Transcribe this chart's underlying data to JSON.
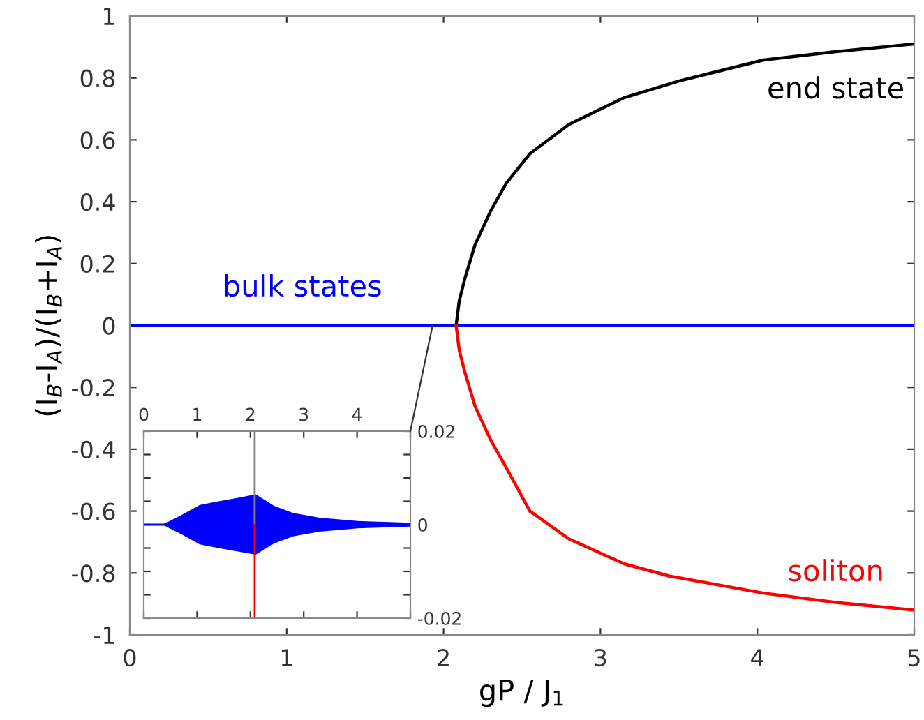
{
  "chart_data": [
    {
      "type": "line",
      "xlabel": "gP / J$_{1}$",
      "ylabel": "(I$_{B}$-I$_{A}$)/(I$_{B}$+I$_{A}$)",
      "xlim": [
        0,
        5
      ],
      "ylim": [
        -1,
        1
      ],
      "xticks": [
        0,
        1,
        2,
        3,
        4,
        5
      ],
      "yticks": [
        -1,
        -0.8,
        -0.6,
        -0.4,
        -0.2,
        0,
        0.2,
        0.4,
        0.6,
        0.8,
        1
      ],
      "grid": false,
      "legend": false,
      "marker": "none",
      "line_style": "solid",
      "series": [
        {
          "name": "bulk states",
          "color": "#0000ff",
          "x": [
            0,
            1,
            2,
            2.08,
            3,
            4,
            5
          ],
          "values": [
            0,
            0,
            0,
            0,
            0,
            0,
            0
          ]
        },
        {
          "name": "end state",
          "color": "#000000",
          "x": [
            2.08,
            2.1,
            2.135,
            2.2,
            2.3,
            2.4,
            2.55,
            2.8,
            3.15,
            3.5,
            4.04,
            4.5,
            5
          ],
          "values": [
            0,
            0.08,
            0.15,
            0.26,
            0.37,
            0.46,
            0.555,
            0.65,
            0.736,
            0.79,
            0.858,
            0.885,
            0.91
          ]
        },
        {
          "name": "soliton",
          "color": "#ff0000",
          "x": [
            2.08,
            2.1,
            2.135,
            2.2,
            2.3,
            2.4,
            2.55,
            2.8,
            3.15,
            3.44,
            4.04,
            4.5,
            5
          ],
          "values": [
            0,
            -0.08,
            -0.15,
            -0.26,
            -0.37,
            -0.46,
            -0.6,
            -0.69,
            -0.77,
            -0.81,
            -0.865,
            -0.895,
            -0.92
          ]
        }
      ]
    },
    {
      "type": "line",
      "xlim": [
        0,
        5
      ],
      "ylim": [
        -0.02,
        0.02
      ],
      "xticks": [
        0,
        1,
        2,
        3,
        4,
        {
          "value": 5,
          "label": null
        }
      ],
      "yticks": [
        {
          "value": -0.02,
          "label": "-0.02"
        },
        {
          "value": -0.015,
          "label": null
        },
        {
          "value": -0.01,
          "label": null
        },
        {
          "value": -0.005,
          "label": null
        },
        0,
        {
          "value": 0.005,
          "label": null
        },
        {
          "value": 0.01,
          "label": null
        },
        {
          "value": 0.015,
          "label": null
        },
        {
          "value": 0.02,
          "label": "0.02"
        }
      ],
      "grid": false,
      "legend": false,
      "marker": "none",
      "line_style": "solid",
      "series": [
        {
          "color": "#0000ff",
          "x": [
            0,
            0.35,
            0.7,
            1.05,
            1.4,
            1.75,
            2.1,
            2.45,
            2.8,
            3.3,
            4,
            5
          ],
          "values": [
            0,
            0,
            0,
            0,
            0,
            0,
            0,
            0,
            0,
            0,
            0,
            0
          ],
          "upper": [
            0,
            0,
            0.002,
            0.0042,
            0.005,
            0.0057,
            0.0065,
            0.004,
            0.0025,
            0.0015,
            0.0008,
            0.0004
          ],
          "lower": [
            0,
            0,
            -0.002,
            -0.0042,
            -0.005,
            -0.0057,
            -0.0064,
            -0.004,
            -0.0025,
            -0.0015,
            -0.0008,
            -0.0004
          ]
        },
        {
          "color": "#808080",
          "x": [
            2.08,
            2.08
          ],
          "values": [
            0,
            0.02
          ]
        },
        {
          "color": "#ff0000",
          "x": [
            2.08,
            2.08
          ],
          "values": [
            0,
            -0.02
          ]
        }
      ]
    }
  ]
}
